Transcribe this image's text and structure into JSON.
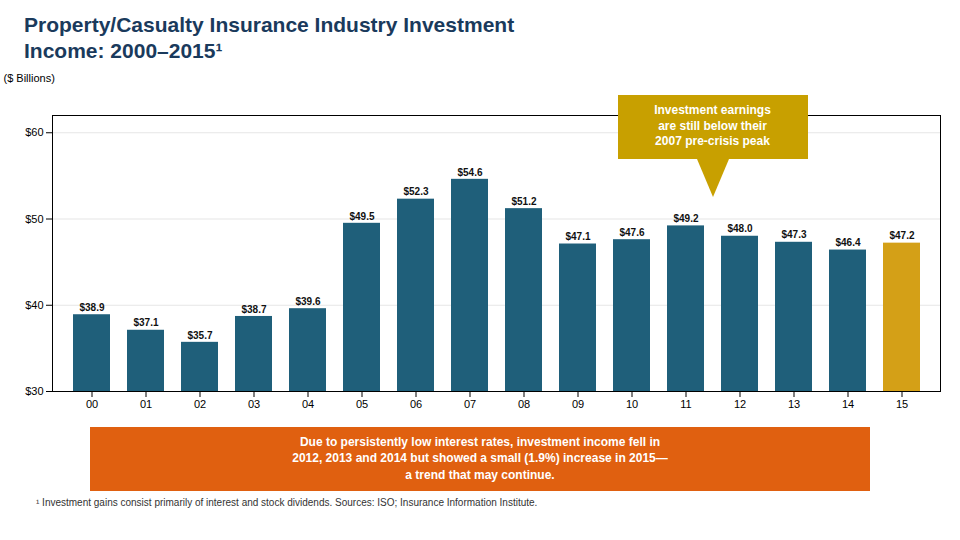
{
  "chart_data": {
    "type": "bar",
    "title": "Property/Casualty Insurance Industry Investment\nIncome: 2000–2015¹",
    "ylabel": "($ Billions)",
    "categories": [
      "00",
      "01",
      "02",
      "03",
      "04",
      "05",
      "06",
      "07",
      "08",
      "09",
      "10",
      "11",
      "12",
      "13",
      "14",
      "15"
    ],
    "values": [
      38.9,
      37.1,
      35.7,
      38.7,
      39.6,
      49.5,
      52.3,
      54.6,
      51.2,
      47.1,
      47.6,
      49.2,
      48.0,
      47.3,
      46.4,
      47.2
    ],
    "value_labels": [
      "$38.9",
      "$37.1",
      "$35.7",
      "$38.7",
      "$39.6",
      "$49.5",
      "$52.3",
      "$54.6",
      "$51.2",
      "$47.1",
      "$47.6",
      "$49.2",
      "$48.0",
      "$47.3",
      "$46.4",
      "$47.2"
    ],
    "colors": [
      "#1f5f7a",
      "#1f5f7a",
      "#1f5f7a",
      "#1f5f7a",
      "#1f5f7a",
      "#1f5f7a",
      "#1f5f7a",
      "#1f5f7a",
      "#1f5f7a",
      "#1f5f7a",
      "#1f5f7a",
      "#1f5f7a",
      "#1f5f7a",
      "#1f5f7a",
      "#1f5f7a",
      "#d4a017"
    ],
    "ylim": [
      30,
      62
    ],
    "yticks": [
      {
        "value": 30,
        "label": "$30"
      },
      {
        "value": 40,
        "label": "$40"
      },
      {
        "value": 50,
        "label": "$50"
      },
      {
        "value": 60,
        "label": "$60"
      }
    ],
    "grid": true,
    "data_labels": true,
    "annotations": [
      {
        "text": "Investment earnings\nare still below their\n2007 pre-crisis peak",
        "color": "#c8a000"
      },
      {
        "text": "Due to persistently low interest rates, investment income fell in\n2012, 2013 and 2014 but showed a small (1.9%) increase in 2015—\na trend that may continue.",
        "color": "#e06010"
      }
    ],
    "footnote": "¹ Investment gains consist primarily of interest and stock dividends. Sources: ISO; Insurance Information Institute."
  }
}
